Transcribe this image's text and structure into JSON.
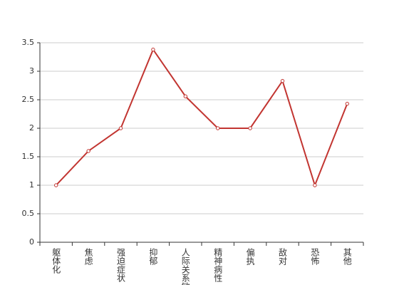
{
  "chart_data": {
    "type": "line",
    "categories": [
      "躯体化",
      "焦虑",
      "强迫症状",
      "抑郁",
      "人际关系敏感",
      "精神病性",
      "偏执",
      "敌对",
      "恐怖",
      "其他"
    ],
    "values": [
      1,
      1.6,
      2,
      3.38,
      2.56,
      2,
      2,
      2.83,
      1,
      2.43
    ],
    "color": "#c23531",
    "ylim": [
      0,
      3.5
    ],
    "yticks": [
      0,
      0.5,
      1,
      1.5,
      2,
      2.5,
      3,
      3.5
    ],
    "grid": true
  }
}
